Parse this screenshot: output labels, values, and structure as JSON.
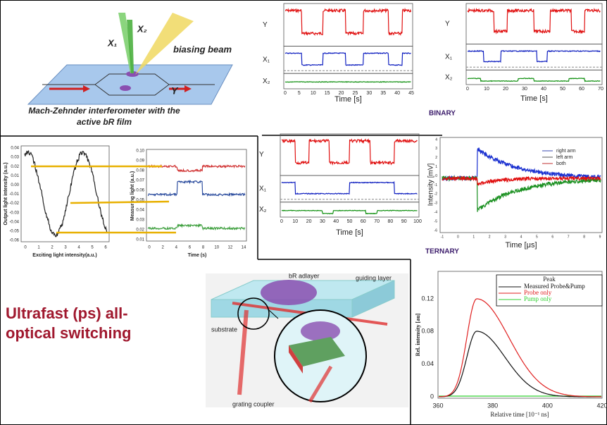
{
  "mz": {
    "x1": "X₁",
    "x2": "X₂",
    "beam": "biasing beam",
    "y": "Y",
    "caption1": "Mach-Zehnder interferometer with the",
    "caption2": "active bR film"
  },
  "binary_a": {
    "ylabels": [
      "Y",
      "X₁",
      "X₂"
    ],
    "xticks": [
      "0",
      "5",
      "10",
      "15",
      "20",
      "25",
      "30",
      "35",
      "40",
      "45"
    ],
    "xlabel": "Time [s]"
  },
  "binary_b": {
    "ylabels": [
      "Y",
      "X₁",
      "X₂"
    ],
    "xticks": [
      "0",
      "10",
      "20",
      "30",
      "40",
      "50",
      "60",
      "70"
    ],
    "xlabel": "Time [s]"
  },
  "binary": "BINARY",
  "osc": {
    "yticks": [
      "0.04",
      "0.03",
      "0.02",
      "0.01",
      "0.00",
      "-0.01",
      "-0.02",
      "-0.03",
      "-0.04",
      "-0.05",
      "-0.06"
    ],
    "xticks": [
      "0",
      "1",
      "2",
      "3",
      "4",
      "5",
      "6"
    ],
    "ylabel": "Output light intensity (a.u.)",
    "xlabel": "Exciting light intensity(a.u.)"
  },
  "meas": {
    "yticks": [
      "0.10",
      "0.09",
      "0.08",
      "0.07",
      "0.06",
      "0.05",
      "0.04",
      "0.03",
      "0.02",
      "0.01"
    ],
    "xticks": [
      "0",
      "2",
      "4",
      "6",
      "8",
      "10",
      "12",
      "14"
    ],
    "ylabel": "Measuring light (a.u.)",
    "xlabel": "Time (s)"
  },
  "ternary_a": {
    "ylabels": [
      "Y",
      "X₁",
      "X₂"
    ],
    "xticks": [
      "0",
      "10",
      "20",
      "30",
      "40",
      "50",
      "60",
      "70",
      "80",
      "90",
      "100"
    ],
    "xlabel": "Time [s]"
  },
  "arms": {
    "yticks": [
      "4",
      "3",
      "2",
      "1",
      "0",
      "-1",
      "-2",
      "-3",
      "-4",
      "-5",
      "-6"
    ],
    "xticks": [
      "-1",
      "0",
      "1",
      "2",
      "3",
      "4",
      "5",
      "6",
      "7",
      "8",
      "9"
    ],
    "ylabel": "Intensity [mV]",
    "xlabel": "Time [μs]",
    "legend": [
      "right arm",
      "left arm",
      "both"
    ]
  },
  "ternary": "TERNARY",
  "ultrafast": {
    "line1": "Ultrafast (ps) all-",
    "line2": "optical switching"
  },
  "grating": {
    "adlayer": "bR adlayer",
    "guiding": "guiding layer",
    "substrate": "substrate",
    "coupler": "grating coupler"
  },
  "peak": {
    "yticks": [
      "0",
      "0.04",
      "0.08",
      "0.12"
    ],
    "xticks": [
      "360",
      "380",
      "400",
      "420"
    ],
    "ylabel": "Rel. intensity [au]",
    "xlabel": "Relative time [10⁻¹ ns]",
    "legend_title": "Peak",
    "legend": [
      "Measured Probe&Pump",
      "Probe only",
      "Pump only"
    ]
  }
}
